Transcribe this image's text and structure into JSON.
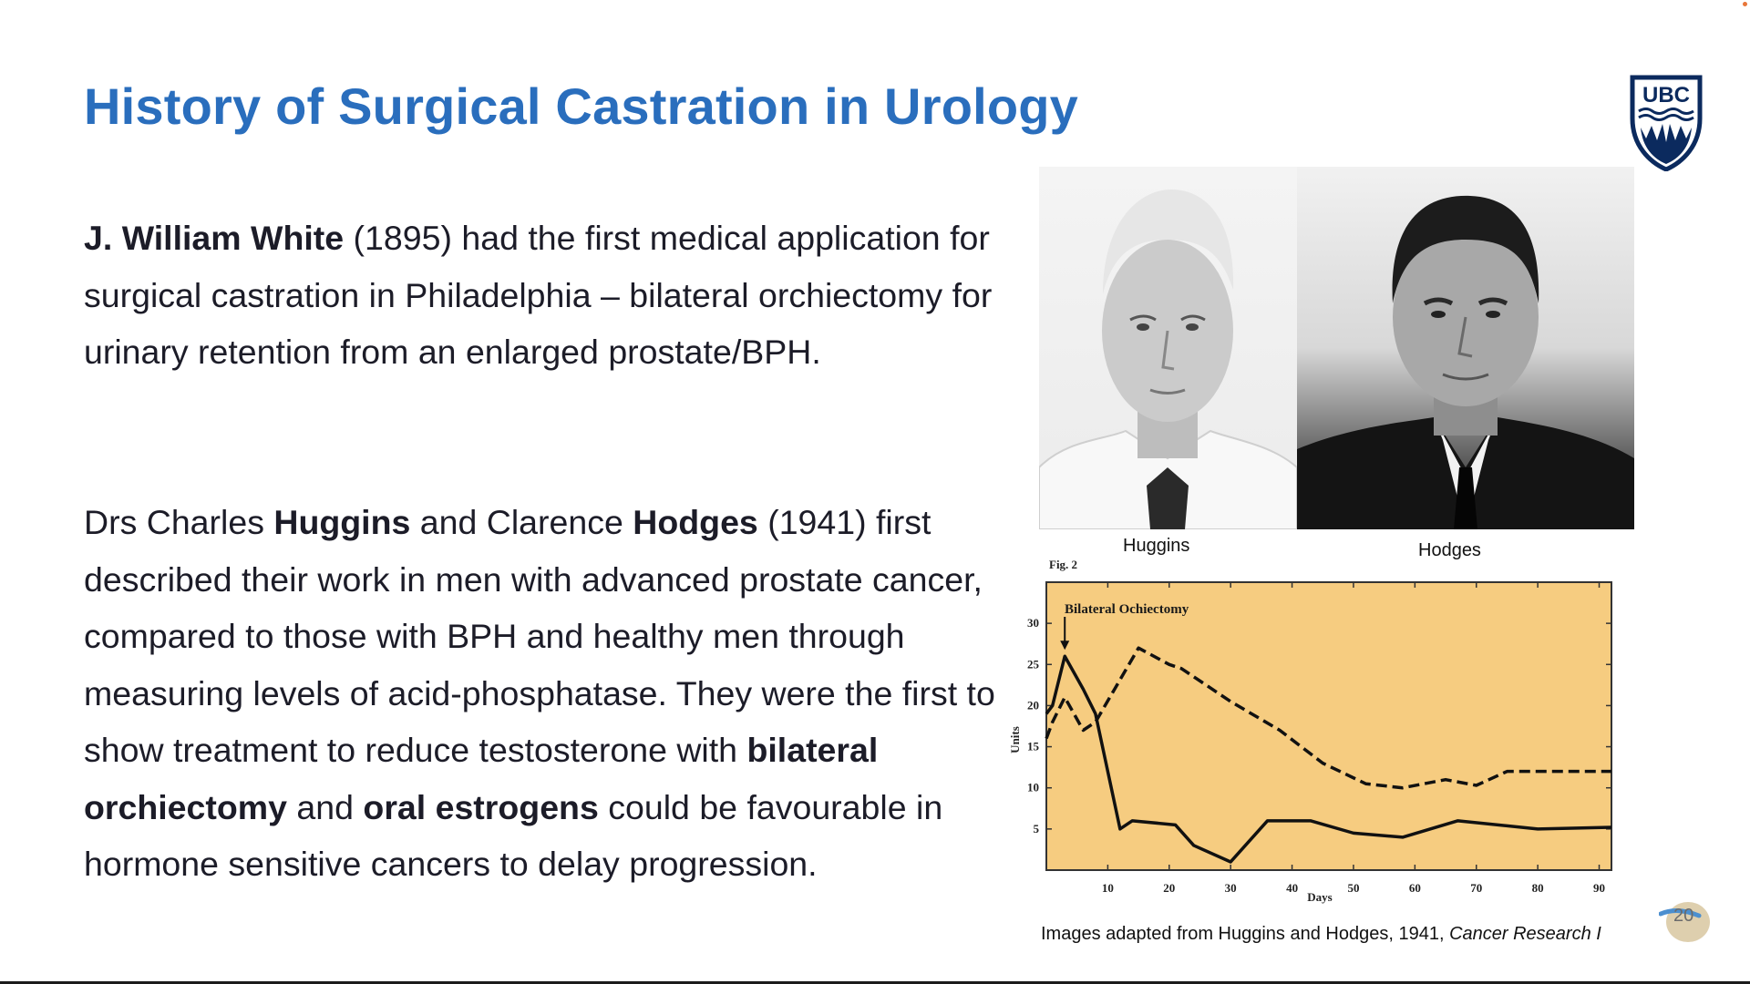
{
  "slide": {
    "title": "History of Surgical Castration in Urology",
    "logo_text": "UBC",
    "para1": {
      "bold_name": "J. William White",
      "text": " (1895) had the first medical application for surgical castration in Philadelphia – bilateral orchiectomy for urinary retention from an enlarged prostate/BPH."
    },
    "para2": {
      "t1": "Drs Charles ",
      "b1": "Huggins",
      "t2": " and Clarence ",
      "b2": "Hodges",
      "t3": " (1941) first described their work in men with advanced prostate cancer, compared to those with BPH and healthy men through measuring levels of acid-phosphatase. They were the first to show treatment to reduce testosterone with ",
      "b3": "bilateral orchiectomy",
      "t4": " and ",
      "b4": "oral estrogens",
      "t5": " could be favourable in hormone sensitive cancers to delay progression."
    },
    "photo_captions": {
      "left": "Huggins",
      "right": "Hodges"
    },
    "source": {
      "prefix": "Images adapted from Huggins and Hodges, 1941, ",
      "journal": "Cancer Research I"
    },
    "page_number": "20"
  },
  "colors": {
    "title": "#2a6ebd",
    "body_text": "#1c1c28",
    "chart_bg": "#f6cc80",
    "logo": "#0b2a5e"
  },
  "icons": {
    "logo": "ubc-crest-icon",
    "badge": "page-badge-icon"
  },
  "chart_data": {
    "type": "line",
    "fig_label": "Fig. 2",
    "title": "Bilateral Ochiectomy",
    "xlabel": "Days",
    "ylabel": "Units",
    "xlim": [
      0,
      92
    ],
    "ylim": [
      0,
      35
    ],
    "x_ticks": [
      10,
      20,
      30,
      40,
      50,
      60,
      70,
      80,
      90
    ],
    "y_ticks": [
      5,
      10,
      15,
      20,
      25,
      30
    ],
    "grid": false,
    "annotation": {
      "type": "arrow",
      "x": 3
    },
    "series": [
      {
        "style": "solid",
        "x": [
          0,
          1,
          3,
          6,
          8,
          12,
          14,
          21,
          24,
          30,
          36,
          43,
          50,
          58,
          67,
          80,
          92
        ],
        "y": [
          19,
          20,
          26,
          22,
          19,
          5,
          6,
          5.5,
          3,
          1,
          6,
          6,
          4.5,
          4,
          6,
          5,
          5.2
        ]
      },
      {
        "style": "dashed",
        "x": [
          0,
          1,
          3,
          6,
          8,
          15,
          20,
          22,
          30,
          38,
          45,
          52,
          58,
          65,
          70,
          75,
          80,
          92
        ],
        "y": [
          16,
          18,
          21,
          17,
          18,
          27,
          25,
          24.5,
          20.5,
          17,
          13,
          10.5,
          10,
          11,
          10.3,
          12,
          12,
          12
        ]
      }
    ]
  }
}
